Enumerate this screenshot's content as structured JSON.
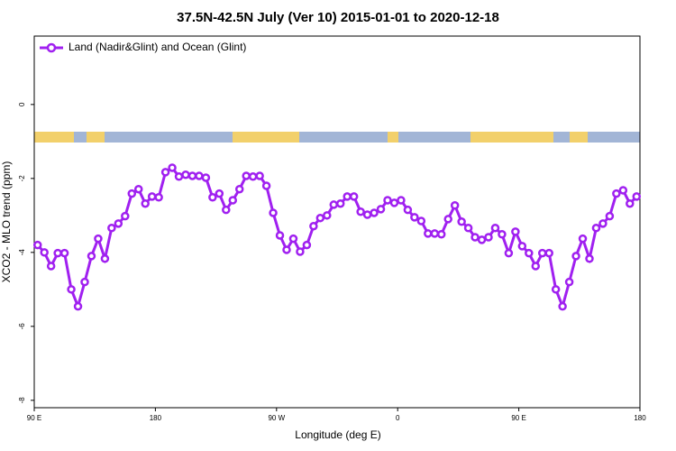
{
  "chart_data": {
    "type": "line",
    "title": "37.5N-42.5N July (Ver 10)   2015-01-01 to 2020-12-18",
    "x_label": "Longitude (deg E)",
    "y_label": "XCO2 - MLO trend (ppm)",
    "x": [
      92.5,
      97.5,
      102.5,
      107.5,
      112.5,
      117.5,
      122.5,
      127.5,
      132.5,
      137.5,
      142.5,
      147.5,
      152.5,
      157.5,
      162.5,
      167.5,
      172.5,
      177.5,
      182.5,
      187.5,
      192.5,
      197.5,
      202.5,
      207.5,
      212.5,
      217.5,
      222.5,
      227.5,
      232.5,
      237.5,
      242.5,
      247.5,
      252.5,
      257.5,
      262.5,
      267.5,
      272.5,
      277.5,
      282.5,
      287.5,
      292.5,
      297.5,
      302.5,
      307.5,
      312.5,
      317.5,
      322.5,
      327.5,
      332.5,
      337.5,
      342.5,
      347.5,
      352.5,
      357.5,
      362.5,
      367.5,
      372.5,
      377.5,
      382.5,
      387.5,
      392.5,
      397.5,
      402.5,
      407.5,
      412.5,
      417.5,
      422.5,
      427.5,
      432.5,
      437.5,
      442.5,
      447.5,
      452.5,
      457.5,
      462.5,
      467.5,
      472.5,
      477.5,
      482.5,
      487.5,
      492.5,
      497.5,
      502.5,
      507.5,
      512.5,
      517.5,
      522.5,
      527.5,
      532.5,
      537.5
    ],
    "series": [
      {
        "name": "Land (Nadir&Glint) and Ocean (Glint)",
        "color": "#a020f0",
        "values": [
          -3.8,
          -4.0,
          -4.37,
          -4.02,
          -4.02,
          -5.0,
          -5.46,
          -4.8,
          -4.1,
          -3.63,
          -4.17,
          -3.34,
          -3.22,
          -3.02,
          -2.41,
          -2.29,
          -2.68,
          -2.49,
          -2.51,
          -1.83,
          -1.71,
          -1.95,
          -1.9,
          -1.93,
          -1.93,
          -1.98,
          -2.51,
          -2.41,
          -2.85,
          -2.59,
          -2.29,
          -1.93,
          -1.95,
          -1.93,
          -2.2,
          -2.93,
          -3.54,
          -3.93,
          -3.63,
          -3.98,
          -3.8,
          -3.29,
          -3.07,
          -3.0,
          -2.71,
          -2.68,
          -2.49,
          -2.49,
          -2.9,
          -2.98,
          -2.93,
          -2.83,
          -2.59,
          -2.66,
          -2.59,
          -2.85,
          -3.05,
          -3.15,
          -3.49,
          -3.49,
          -3.51,
          -3.1,
          -2.73,
          -3.17,
          -3.34,
          -3.59,
          -3.66,
          -3.59,
          -3.34,
          -3.51,
          -4.02,
          -3.44,
          -3.83,
          -4.02,
          -4.37,
          -4.02,
          -4.02,
          -5.0,
          -5.46,
          -4.8,
          -4.1,
          -3.63,
          -4.17,
          -3.34,
          -3.22,
          -3.02,
          -2.41,
          -2.32,
          -2.68,
          -2.49
        ]
      }
    ],
    "xlim": [
      90,
      540
    ],
    "xticks": [
      {
        "value": 90,
        "label": "90 E"
      },
      {
        "value": 180,
        "label": "180"
      },
      {
        "value": 270,
        "label": "90 W"
      },
      {
        "value": 360,
        "label": "0"
      },
      {
        "value": 450,
        "label": "90 E"
      },
      {
        "value": 540,
        "label": "180"
      }
    ],
    "ylim": [
      -8.2,
      1.85
    ],
    "yticks": [
      0,
      -2,
      -4,
      -6,
      -8
    ],
    "legend": "top-left",
    "grid": false
  }
}
